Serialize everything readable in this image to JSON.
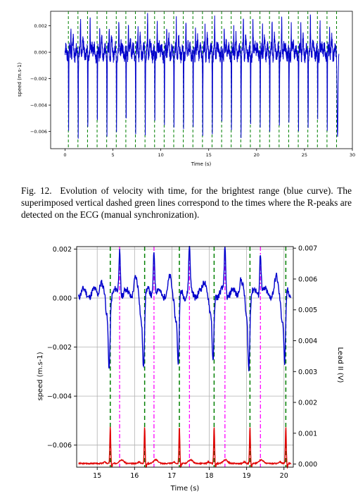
{
  "caption": {
    "label": "Fig. 12.",
    "text": "Evolution of velocity with time, for the brightest range (blue curve). The superimposed vertical dashed green lines correspond to the times where the R-peaks are detected on the ECG (manual synchronization)."
  },
  "colors": {
    "speed": "#0000cc",
    "r_peak_lines": "#008000",
    "ecg": "#e00000",
    "magenta_lines": "#ff00ff",
    "grid": "#b0b0b0"
  },
  "chart_data": [
    {
      "type": "line",
      "xlabel": "Time (s)",
      "ylabel": "speed (m.s-1)",
      "xlim": [
        -1.5,
        30
      ],
      "ylim": [
        -0.0073,
        0.0031
      ],
      "xticks": [
        "0",
        "5",
        "10",
        "15",
        "20",
        "25",
        "30"
      ],
      "yticks": [
        "0.002",
        "0.000",
        "−0.002",
        "−0.004",
        "−0.006"
      ],
      "series": [
        {
          "kind": "speed",
          "color": "#0000cc",
          "t_start": 0.0,
          "t_end": 28.6,
          "beat_period_s": 1.0,
          "baseline": 0.0,
          "beat_min": -0.0057,
          "beat_max": 0.0022
        }
      ],
      "vlines_green": [
        0.35,
        1.35,
        2.35,
        3.35,
        4.35,
        5.35,
        6.35,
        7.35,
        8.35,
        9.35,
        10.35,
        11.35,
        12.35,
        13.35,
        14.35,
        15.35,
        16.35,
        17.35,
        18.35,
        19.35,
        20.35,
        21.35,
        22.35,
        23.35,
        24.35,
        25.35,
        26.35,
        27.35,
        28.35
      ]
    },
    {
      "type": "line",
      "xlabel": "Time (s)",
      "ylabel": "speed (m.s-1)",
      "y2label": "Lead II (V)",
      "xlim": [
        14.45,
        20.25
      ],
      "ylim": [
        -0.0069,
        0.0021
      ],
      "y2lim": [
        -0.0001,
        0.00705
      ],
      "xticks": [
        15,
        16,
        17,
        18,
        19,
        20
      ],
      "yticks": [
        0.002,
        0.0,
        -0.002,
        -0.004,
        -0.006
      ],
      "ytick_labels": [
        "0.002",
        "0.000",
        "−0.002",
        "−0.004",
        "−0.006"
      ],
      "y2ticks": [
        0.007,
        0.006,
        0.005,
        0.004,
        0.003,
        0.002,
        0.001,
        0.0
      ],
      "y2tick_labels": [
        "0.007",
        "0.006",
        "0.005",
        "0.004",
        "0.003",
        "0.002",
        "0.001",
        "0.000"
      ],
      "grid": true,
      "series": [
        {
          "kind": "speed",
          "axis": "left",
          "color": "#0000cc",
          "beat_min": -0.0029,
          "beat_max": 0.0021,
          "baseline": 0.0002
        },
        {
          "kind": "ecg",
          "axis": "right",
          "color": "#e00000",
          "r_peak_value": 0.0012,
          "baseline": 0.0
        }
      ],
      "vlines_green": [
        15.35,
        16.27,
        17.2,
        18.13,
        19.09,
        20.05
      ],
      "vlines_magenta": [
        15.6,
        16.52,
        17.47,
        18.42,
        19.37
      ]
    }
  ]
}
